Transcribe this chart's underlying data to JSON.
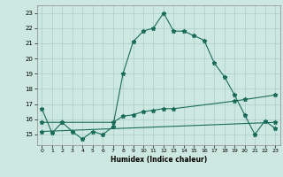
{
  "xlabel": "Humidex (Indice chaleur)",
  "bg_color": "#cde8e0",
  "grid_color": "#aacccc",
  "line_color": "#1a6b5a",
  "xlim": [
    -0.5,
    23.5
  ],
  "ylim": [
    14.3,
    23.5
  ],
  "yticks": [
    15,
    16,
    17,
    18,
    19,
    20,
    21,
    22,
    23
  ],
  "xticks": [
    0,
    1,
    2,
    3,
    4,
    5,
    6,
    7,
    8,
    9,
    10,
    11,
    12,
    13,
    14,
    15,
    16,
    17,
    18,
    19,
    20,
    21,
    22,
    23
  ],
  "line1_x": [
    0,
    1,
    2,
    3,
    4,
    5,
    6,
    7,
    8,
    9,
    10,
    11,
    12,
    13,
    14,
    15,
    16,
    17,
    18,
    19,
    20,
    21,
    22,
    23
  ],
  "line1_y": [
    16.7,
    15.1,
    15.8,
    15.2,
    14.7,
    15.2,
    15.0,
    15.5,
    19.0,
    21.1,
    21.8,
    22.0,
    23.0,
    21.8,
    21.8,
    21.5,
    21.2,
    19.7,
    18.8,
    17.6,
    16.3,
    15.0,
    15.9,
    15.4
  ],
  "line2_x": [
    0,
    2,
    7,
    8,
    9,
    10,
    11,
    12,
    13,
    19,
    20,
    23
  ],
  "line2_y": [
    15.8,
    15.8,
    15.8,
    16.2,
    16.3,
    16.5,
    16.6,
    16.7,
    16.7,
    17.2,
    17.3,
    17.6
  ],
  "line3_x": [
    0,
    23
  ],
  "line3_y": [
    15.2,
    15.8
  ]
}
